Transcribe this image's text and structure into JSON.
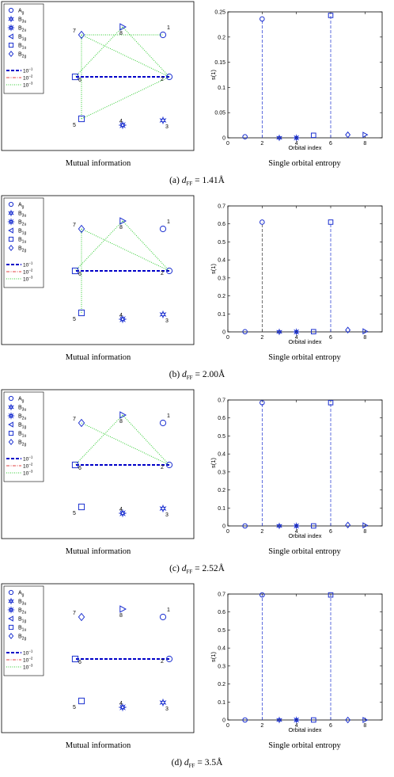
{
  "legend": {
    "symbols": [
      {
        "label": "A",
        "sub": "g",
        "icon": "circle-icon"
      },
      {
        "label": "B",
        "sub": "3u",
        "icon": "star6-icon"
      },
      {
        "label": "B",
        "sub": "2u",
        "icon": "star8-icon"
      },
      {
        "label": "B",
        "sub": "1g",
        "icon": "triangle-left-icon"
      },
      {
        "label": "B",
        "sub": "1u",
        "icon": "square-icon"
      },
      {
        "label": "B",
        "sub": "2g",
        "icon": "diamond-icon"
      }
    ],
    "lines": [
      {
        "label": "10",
        "exp": "−1",
        "style": "thick-dashed",
        "color": "#0000c8"
      },
      {
        "label": "10",
        "exp": "−2",
        "style": "dash-dot",
        "color": "#e04040"
      },
      {
        "label": "10",
        "exp": "−3",
        "style": "dotted",
        "color": "#33cc33"
      }
    ]
  },
  "colors": {
    "marker": "#1a2fd0",
    "strong": "#0000c8",
    "medium": "#e04040",
    "weak": "#33cc33"
  },
  "panels": [
    {
      "id": "a",
      "caption_tag": "(a)",
      "caption_var": "d",
      "caption_sub": "FF",
      "caption_value": "= 1.41Å",
      "left_label": "Mutual information",
      "right_label": "Single orbital entropy",
      "mutual_info": {
        "strong": [
          [
            2,
            6
          ]
        ],
        "medium": [],
        "weak": [
          [
            7,
            2
          ],
          [
            8,
            2
          ],
          [
            7,
            1
          ],
          [
            8,
            6
          ],
          [
            5,
            2
          ],
          [
            5,
            7
          ]
        ]
      },
      "chart_data": {
        "type": "scatter",
        "stem": true,
        "xlabel": "Orbital index",
        "ylabel": "s(1)",
        "xlim": [
          0,
          9
        ],
        "ylim": [
          0,
          0.25
        ],
        "xticks": [
          "0",
          "2",
          "4",
          "6",
          "8"
        ],
        "yticks": [
          "0",
          "0.05",
          "0.1",
          "0.15",
          "0.2",
          "0.25"
        ],
        "x": [
          1,
          2,
          3,
          4,
          5,
          6,
          7,
          8
        ],
        "values": [
          0.002,
          0.236,
          0.0,
          0.0,
          0.005,
          0.243,
          0.006,
          0.006
        ]
      }
    },
    {
      "id": "b",
      "caption_tag": "(b)",
      "caption_var": "d",
      "caption_sub": "FF",
      "caption_value": "= 2.00Å",
      "left_label": "Mutual information",
      "right_label": "Single orbital entropy",
      "mutual_info": {
        "strong": [
          [
            2,
            6
          ]
        ],
        "medium": [],
        "weak": [
          [
            7,
            2
          ],
          [
            8,
            2
          ],
          [
            8,
            6
          ],
          [
            5,
            7
          ]
        ]
      },
      "chart_data": {
        "type": "scatter",
        "stem": true,
        "xlabel": "Orbital index",
        "ylabel": "s(1)",
        "xlim": [
          0,
          9
        ],
        "ylim": [
          0,
          0.7
        ],
        "xticks": [
          "0",
          "2",
          "4",
          "6",
          "8"
        ],
        "yticks": [
          "0",
          "0.1",
          "0.2",
          "0.3",
          "0.4",
          "0.5",
          "0.6",
          "0.7"
        ],
        "x": [
          1,
          2,
          3,
          4,
          5,
          6,
          7,
          8
        ],
        "values": [
          0.001,
          0.61,
          0.0,
          0.0,
          0.001,
          0.61,
          0.01,
          0.003
        ]
      }
    },
    {
      "id": "c",
      "caption_tag": "(c)",
      "caption_var": "d",
      "caption_sub": "FF",
      "caption_value": "= 2.52Å",
      "left_label": "Mutual information",
      "right_label": "Single orbital entropy",
      "mutual_info": {
        "strong": [
          [
            2,
            6
          ]
        ],
        "medium": [],
        "weak": [
          [
            7,
            2
          ],
          [
            8,
            2
          ],
          [
            8,
            6
          ]
        ]
      },
      "chart_data": {
        "type": "scatter",
        "stem": true,
        "xlabel": "Orbital index",
        "ylabel": "s(1)",
        "xlim": [
          0,
          9
        ],
        "ylim": [
          0,
          0.7
        ],
        "xticks": [
          "0",
          "2",
          "4",
          "6",
          "8"
        ],
        "yticks": [
          "0",
          "0.1",
          "0.2",
          "0.3",
          "0.4",
          "0.5",
          "0.6",
          "0.7"
        ],
        "x": [
          1,
          2,
          3,
          4,
          5,
          6,
          7,
          8
        ],
        "values": [
          0.0,
          0.685,
          0.0,
          0.0,
          0.0,
          0.685,
          0.005,
          0.003
        ]
      }
    },
    {
      "id": "d",
      "caption_tag": "(d)",
      "caption_var": "d",
      "caption_sub": "FF",
      "caption_value": "= 3.5Å",
      "left_label": "Mutual information",
      "right_label": "Single orbital entropy",
      "mutual_info": {
        "strong": [
          [
            2,
            6
          ]
        ],
        "medium": [],
        "weak": []
      },
      "chart_data": {
        "type": "scatter",
        "stem": true,
        "xlabel": "Orbital index",
        "ylabel": "s(1)",
        "xlim": [
          0,
          9
        ],
        "ylim": [
          0,
          0.7
        ],
        "xticks": [
          "0",
          "2",
          "4",
          "6",
          "8"
        ],
        "yticks": [
          "0",
          "0.1",
          "0.2",
          "0.3",
          "0.4",
          "0.5",
          "0.6",
          "0.7"
        ],
        "x": [
          1,
          2,
          3,
          4,
          5,
          6,
          7,
          8
        ],
        "values": [
          0.0,
          0.695,
          0.0,
          0.0,
          0.0,
          0.695,
          0.0,
          0.0
        ]
      }
    }
  ],
  "orbitals": [
    {
      "n": "1",
      "sym": "circle"
    },
    {
      "n": "2",
      "sym": "circle"
    },
    {
      "n": "3",
      "sym": "star6"
    },
    {
      "n": "4",
      "sym": "star8"
    },
    {
      "n": "5",
      "sym": "square"
    },
    {
      "n": "6",
      "sym": "square"
    },
    {
      "n": "7",
      "sym": "diamond"
    },
    {
      "n": "8",
      "sym": "triangle"
    }
  ]
}
